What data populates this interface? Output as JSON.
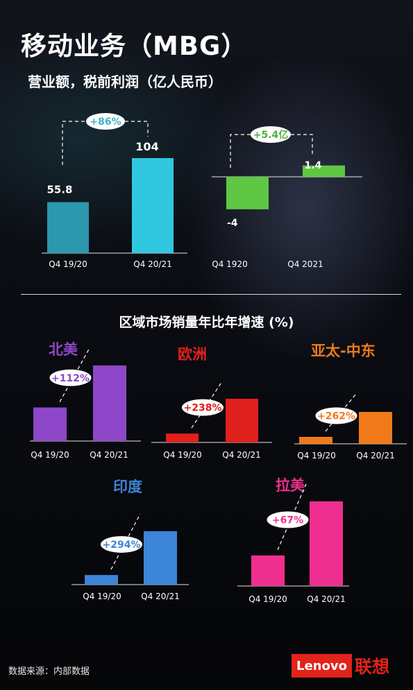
{
  "title": "移动业务（MBG）",
  "subtitle": "营业额，税前利润（亿人民币）",
  "section_title": "区域市场销量年比年增速 (%)",
  "source": "数据来源：内部数据",
  "logo": {
    "en": "Lenovo",
    "cn": "联想",
    "brand_color": "#e2231a"
  },
  "chart_data": [
    {
      "id": "revenue",
      "type": "bar",
      "categories": [
        "Q4 19/20",
        "Q4 20/21"
      ],
      "values": [
        55.8,
        104
      ],
      "value_labels": [
        "55.8",
        "104"
      ],
      "growth_label": "+86%",
      "colors": [
        "#2c97ad",
        "#30c8e0"
      ],
      "label_color": "#3fb6c6"
    },
    {
      "id": "pretax-profit",
      "type": "bar",
      "categories": [
        "Q4 1920",
        "Q4 2021"
      ],
      "values": [
        -4,
        1.4
      ],
      "value_labels": [
        "-4",
        "1.4"
      ],
      "growth_label": "+5.4亿",
      "colors": [
        "#5fc744",
        "#5fc744"
      ],
      "label_color": "#4fb23a"
    },
    {
      "id": "north-america",
      "type": "bar",
      "region": "北美",
      "region_color": "#8e47c8",
      "categories": [
        "Q4 19/20",
        "Q4 20/21"
      ],
      "values": [
        48,
        108
      ],
      "growth_label": "+112%",
      "colors": [
        "#8e47c8",
        "#8e47c8"
      ]
    },
    {
      "id": "europe",
      "type": "bar",
      "region": "欧洲",
      "region_color": "#e0201c",
      "categories": [
        "Q4 19/20",
        "Q4 20/21"
      ],
      "values": [
        13,
        64
      ],
      "growth_label": "+238%",
      "colors": [
        "#e0201c",
        "#e0201c"
      ]
    },
    {
      "id": "apac-me",
      "type": "bar",
      "region": "亚太-中东",
      "region_color": "#f07a1a",
      "categories": [
        "Q4 19/20",
        "Q4 20/21"
      ],
      "values": [
        10,
        46
      ],
      "growth_label": "+262%",
      "colors": [
        "#f07a1a",
        "#f07a1a"
      ]
    },
    {
      "id": "india",
      "type": "bar",
      "region": "印度",
      "region_color": "#3d85d8",
      "categories": [
        "Q4 19/20",
        "Q4 20/21"
      ],
      "values": [
        14,
        78
      ],
      "growth_label": "+294%",
      "colors": [
        "#3d85d8",
        "#3d85d8"
      ]
    },
    {
      "id": "latam",
      "type": "bar",
      "region": "拉美",
      "region_color": "#ef2f8f",
      "categories": [
        "Q4 19/20",
        "Q4 20/21"
      ],
      "values": [
        44,
        122
      ],
      "growth_label": "+67%",
      "colors": [
        "#ef2f8f",
        "#ef2f8f"
      ]
    }
  ]
}
